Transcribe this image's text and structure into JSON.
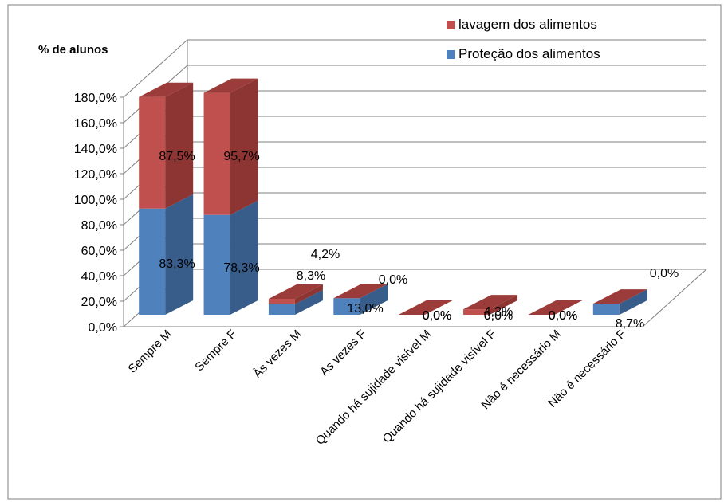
{
  "colors": {
    "protecao_front": "#4f81bd",
    "protecao_side": "#385d8a",
    "protecao_top": "#3a5f8f",
    "lavagem_front": "#c0504d",
    "lavagem_side": "#8c3533",
    "lavagem_top": "#9b3c3a",
    "gridline": "#7f7f7f",
    "frame": "#7f7f7f"
  },
  "chart_data": {
    "type": "bar",
    "stacked": true,
    "three_d": true,
    "title": "",
    "ylabel": "% de alunos",
    "xlabel": "",
    "ylim": [
      0,
      180
    ],
    "yticks": [
      "0,0%",
      "20,0%",
      "40,0%",
      "60,0%",
      "80,0%",
      "100,0%",
      "120,0%",
      "140,0%",
      "160,0%",
      "180,0%"
    ],
    "ytick_values": [
      0,
      20,
      40,
      60,
      80,
      100,
      120,
      140,
      160,
      180
    ],
    "grid": true,
    "legend_position": "top-right",
    "categories": [
      "Sempre M",
      "Sempre F",
      "Às vezes M",
      "Às vezes F",
      "Quando há sujidade visível M",
      "Quando há sujidade visível F",
      "Não é necessário M",
      "Não é necessário F"
    ],
    "series": [
      {
        "name": "Proteção dos alimentos",
        "values": [
          83.3,
          78.3,
          8.3,
          13.0,
          0.0,
          0.0,
          0.0,
          8.7
        ],
        "labels": [
          "83,3%",
          "78,3%",
          "8,3%",
          "13,0%",
          "0,0%",
          "0,0%",
          "0,0%",
          "8,7%"
        ]
      },
      {
        "name": "lavagem dos alimentos",
        "values": [
          87.5,
          95.7,
          4.2,
          0.0,
          0.0,
          4.3,
          0.0,
          0.0
        ],
        "labels": [
          "87,5%",
          "95,7%",
          "4,2%",
          "0,0%",
          "0,0%",
          "4,3%",
          "0,0%",
          "0,0%"
        ]
      }
    ]
  }
}
